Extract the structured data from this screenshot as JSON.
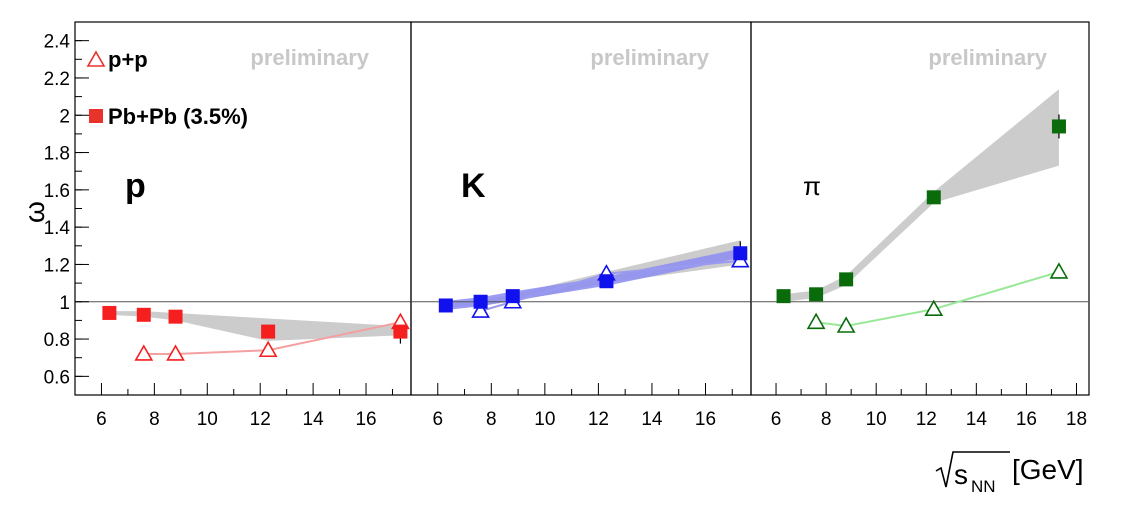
{
  "chart_data": {
    "type": "scatter",
    "ylabel": "ω",
    "xlabel": "[GeV]",
    "xlabel_symbol": {
      "base": "s",
      "subscript": "NN"
    },
    "watermark": "preliminary",
    "ylim": [
      0.5,
      2.5
    ],
    "ref_line": 1,
    "legend": [
      {
        "name": "p+p",
        "marker": "open-triangle",
        "color": "#e8322b"
      },
      {
        "name": "Pb+Pb (3.5%)",
        "marker": "filled-square",
        "color": "#e8322b"
      }
    ],
    "y_ticks": [
      "0.6",
      "0.8",
      "1",
      "1.2",
      "1.4",
      "1.6",
      "1.8",
      "2",
      "2.2",
      "2.4"
    ],
    "panels": [
      {
        "label": "p",
        "color": "#f51f1f",
        "line_color": "#f4a0a0",
        "xlim": [
          5,
          17.7
        ],
        "x_ticks": [
          "6",
          "8",
          "10",
          "12",
          "14",
          "16"
        ],
        "pbpb": {
          "x": [
            6.3,
            7.6,
            8.8,
            12.3,
            17.3
          ],
          "y": [
            0.94,
            0.93,
            0.92,
            0.84,
            0.84
          ]
        },
        "pbpb_band": {
          "x": [
            6.3,
            7.6,
            8.8,
            12.3,
            17.3
          ],
          "lo": [
            0.93,
            0.92,
            0.9,
            0.79,
            0.82
          ],
          "hi": [
            0.95,
            0.95,
            0.94,
            0.91,
            0.87
          ]
        },
        "pp": {
          "x": [
            7.6,
            8.8,
            12.3,
            17.3
          ],
          "y": [
            0.72,
            0.72,
            0.74,
            0.89
          ]
        }
      },
      {
        "label": "K",
        "color": "#1111ee",
        "line_color": "#9a9af0",
        "xlim": [
          5,
          17.7
        ],
        "x_ticks": [
          "6",
          "8",
          "10",
          "12",
          "14",
          "16"
        ],
        "pbpb": {
          "x": [
            6.3,
            7.6,
            8.8,
            12.3,
            17.3
          ],
          "y": [
            0.98,
            1.0,
            1.03,
            1.11,
            1.26
          ]
        },
        "pbpb_band": {
          "x": [
            6.3,
            7.6,
            8.8,
            12.3,
            17.3
          ],
          "lo": [
            0.97,
            0.98,
            1.0,
            1.1,
            1.2
          ],
          "hi": [
            0.99,
            1.01,
            1.04,
            1.16,
            1.33
          ]
        },
        "pp": {
          "x": [
            7.6,
            8.8,
            12.3,
            17.3
          ],
          "y": [
            0.95,
            1.0,
            1.15,
            1.22
          ]
        }
      },
      {
        "label": "π",
        "color": "#0a6b0a",
        "line_color": "#98e898",
        "xlim": [
          5,
          18.5
        ],
        "x_ticks": [
          "6",
          "8",
          "10",
          "12",
          "14",
          "16",
          "18"
        ],
        "pbpb": {
          "x": [
            6.3,
            7.6,
            8.8,
            12.3,
            17.3
          ],
          "y": [
            1.03,
            1.04,
            1.12,
            1.56,
            1.94
          ]
        },
        "pbpb_band": {
          "x": [
            6.3,
            7.6,
            8.8,
            12.3,
            17.3
          ],
          "lo": [
            1.0,
            1.02,
            1.09,
            1.53,
            1.73
          ],
          "hi": [
            1.04,
            1.06,
            1.14,
            1.59,
            2.14
          ]
        },
        "pp": {
          "x": [
            7.6,
            8.8,
            12.3,
            17.3
          ],
          "y": [
            0.89,
            0.87,
            0.96,
            1.16
          ]
        }
      }
    ]
  }
}
